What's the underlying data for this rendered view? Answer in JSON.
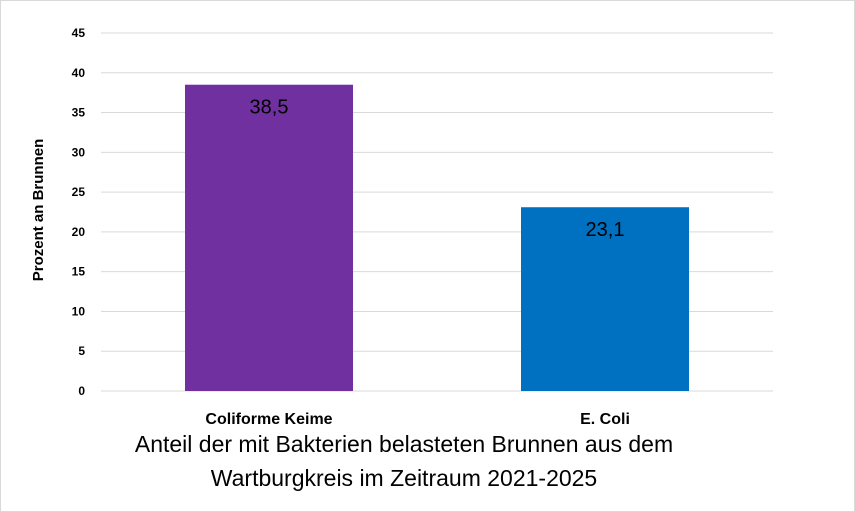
{
  "chart_data": {
    "type": "bar",
    "categories": [
      "Coliforme Keime",
      "E. Coli"
    ],
    "values": [
      38.5,
      23.1
    ],
    "data_labels": [
      "38,5",
      "23,1"
    ],
    "bar_colors": [
      "#7030A0",
      "#0070C0"
    ],
    "title_lines": [
      "Anteil der mit Bakterien belasteten Brunnen aus dem",
      "Wartburgkreis im Zeitraum 2021-2025"
    ],
    "xlabel": "",
    "ylabel": "Prozent an Brunnen",
    "ylim": [
      0,
      45
    ],
    "yticks": [
      0,
      5,
      10,
      15,
      20,
      25,
      30,
      35,
      40,
      45
    ],
    "grid": true,
    "legend": "none"
  }
}
